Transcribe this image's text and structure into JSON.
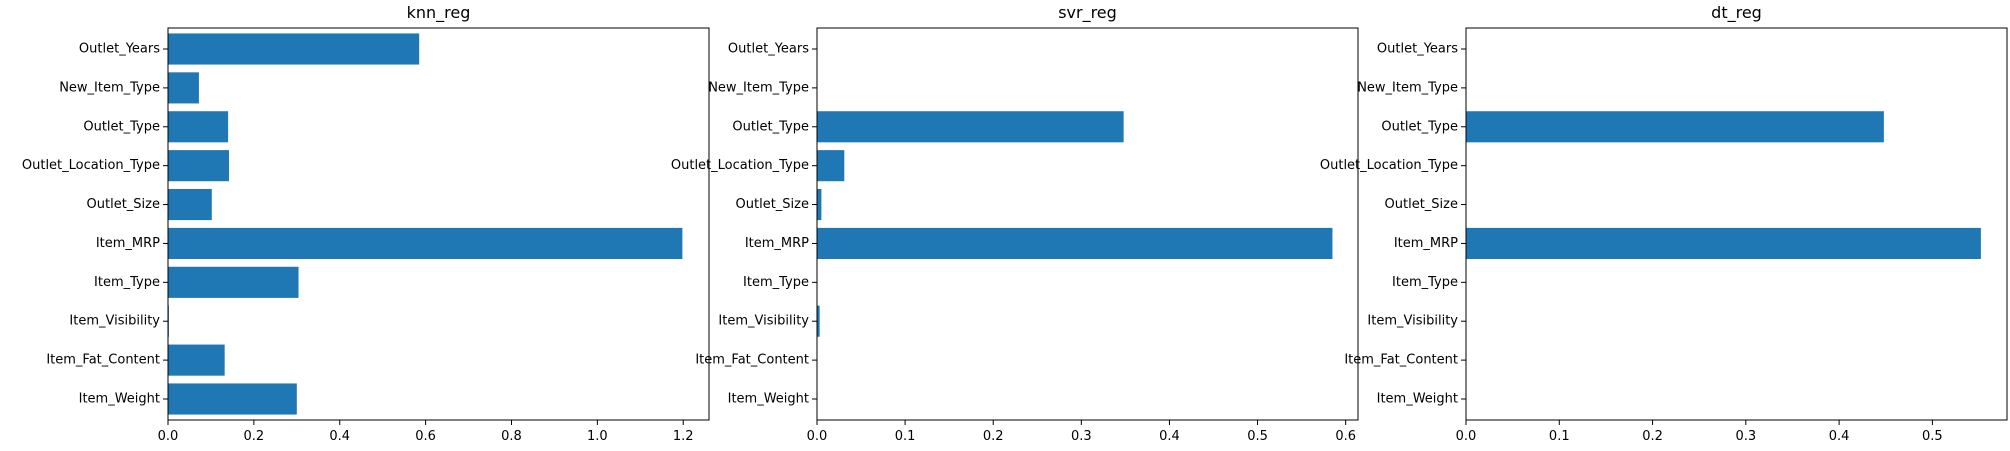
{
  "colors": {
    "bar": "#1f77b4",
    "axis": "#000000",
    "background": "#ffffff"
  },
  "chart_data": [
    {
      "type": "bar",
      "orientation": "horizontal",
      "title": "knn_reg",
      "xlabel": "",
      "ylabel": "",
      "grid": false,
      "categories": [
        "Item_Weight",
        "Item_Fat_Content",
        "Item_Visibility",
        "Item_Type",
        "Item_MRP",
        "Outlet_Size",
        "Outlet_Location_Type",
        "Outlet_Type",
        "New_Item_Type",
        "Outlet_Years"
      ],
      "values": [
        0.3,
        0.132,
        0.002,
        0.304,
        1.198,
        0.102,
        0.142,
        0.14,
        0.072,
        0.585
      ],
      "xlim": [
        0,
        1.26
      ],
      "xticks": [
        "0.0",
        "0.2",
        "0.4",
        "0.6",
        "0.8",
        "1.0",
        "1.2"
      ],
      "xtick_values": [
        0,
        0.2,
        0.4,
        0.6,
        0.8,
        1.0,
        1.2
      ]
    },
    {
      "type": "bar",
      "orientation": "horizontal",
      "title": "svr_reg",
      "xlabel": "",
      "ylabel": "",
      "grid": false,
      "categories": [
        "Item_Weight",
        "Item_Fat_Content",
        "Item_Visibility",
        "Item_Type",
        "Item_MRP",
        "Outlet_Size",
        "Outlet_Location_Type",
        "Outlet_Type",
        "New_Item_Type",
        "Outlet_Years"
      ],
      "values": [
        0.0,
        0.0,
        0.003,
        0.0,
        0.585,
        0.005,
        0.031,
        0.348,
        0.0,
        0.0
      ],
      "xlim": [
        0,
        0.614
      ],
      "xticks": [
        "0.0",
        "0.1",
        "0.2",
        "0.3",
        "0.4",
        "0.5",
        "0.6"
      ],
      "xtick_values": [
        0,
        0.1,
        0.2,
        0.3,
        0.4,
        0.5,
        0.6
      ]
    },
    {
      "type": "bar",
      "orientation": "horizontal",
      "title": "dt_reg",
      "xlabel": "",
      "ylabel": "",
      "grid": false,
      "categories": [
        "Item_Weight",
        "Item_Fat_Content",
        "Item_Visibility",
        "Item_Type",
        "Item_MRP",
        "Outlet_Size",
        "Outlet_Location_Type",
        "Outlet_Type",
        "New_Item_Type",
        "Outlet_Years"
      ],
      "values": [
        0.0,
        0.0,
        0.0,
        0.0,
        0.552,
        0.0,
        0.0,
        0.448,
        0.0,
        0.0
      ],
      "xlim": [
        0,
        0.58
      ],
      "xticks": [
        "0.0",
        "0.1",
        "0.2",
        "0.3",
        "0.4",
        "0.5"
      ],
      "xtick_values": [
        0,
        0.1,
        0.2,
        0.3,
        0.4,
        0.5
      ]
    }
  ]
}
